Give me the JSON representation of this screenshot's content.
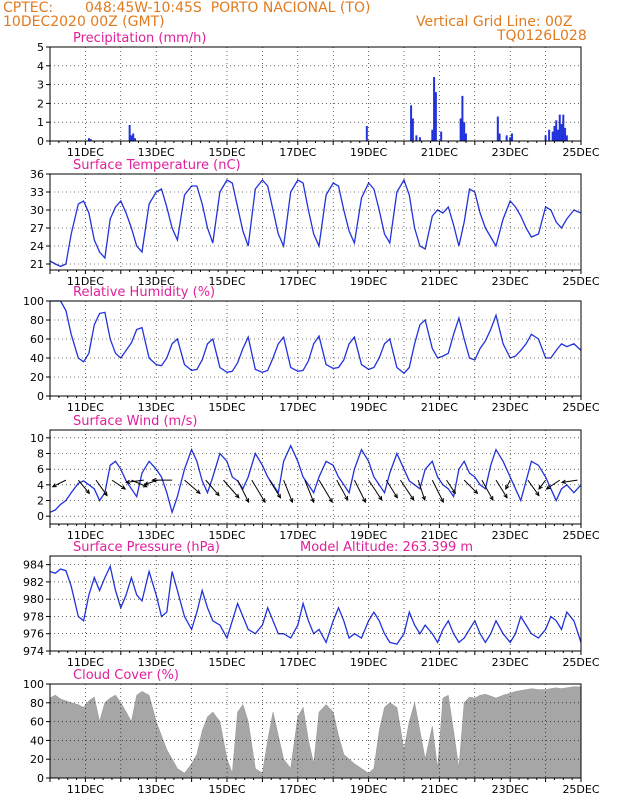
{
  "header": {
    "source": "CPTEC:",
    "location": "048:45W-10:45S  PORTO NACIONAL (TO)",
    "datetime": "10DEC2020 00Z (GMT)",
    "grid_note": "Vertical Grid Line: 00Z",
    "code": "TQ0126L028"
  },
  "colors": {
    "header": "#e07b20",
    "title": "#e0209a",
    "series": "#2233dd",
    "cloud": "#a6a6a6",
    "vector": "#000000"
  },
  "x_axis": {
    "start_day": 10,
    "end_day": 25,
    "tick_labels": [
      "11DEC",
      "13DEC",
      "15DEC",
      "17DEC",
      "19DEC",
      "21DEC",
      "23DEC",
      "25DEC"
    ]
  },
  "chart_data": [
    {
      "type": "bar",
      "title": "Precipitation (mm/h)",
      "ylim": [
        0,
        5
      ],
      "yticks": [
        0,
        1,
        2,
        3,
        4,
        5
      ],
      "grid": true,
      "x": [
        11.1,
        11.15,
        12.25,
        12.3,
        12.35,
        12.4,
        18.95,
        20.2,
        20.25,
        20.35,
        20.45,
        20.8,
        20.85,
        20.9,
        21.05,
        21.6,
        21.65,
        21.7,
        21.75,
        22.65,
        22.7,
        22.9,
        23.0,
        23.05,
        24.0,
        24.1,
        24.2,
        24.25,
        24.3,
        24.35,
        24.4,
        24.45,
        24.5,
        24.55,
        24.6
      ],
      "values": [
        0.15,
        0.1,
        0.85,
        0.3,
        0.4,
        0.15,
        0.8,
        1.9,
        1.2,
        0.3,
        0.2,
        0.6,
        3.4,
        2.6,
        0.5,
        1.2,
        2.4,
        1.0,
        0.4,
        1.3,
        0.4,
        0.3,
        0.2,
        0.4,
        0.3,
        0.6,
        0.5,
        0.8,
        1.1,
        0.6,
        1.4,
        0.9,
        1.4,
        0.7,
        0.3
      ]
    },
    {
      "type": "line",
      "title": "Surface Temperature (nC)",
      "ylim": [
        20,
        36
      ],
      "yticks": [
        21,
        24,
        27,
        30,
        33,
        36
      ],
      "grid": true,
      "x": [
        10.0,
        10.15,
        10.3,
        10.45,
        10.6,
        10.8,
        10.95,
        11.1,
        11.25,
        11.4,
        11.55,
        11.7,
        11.85,
        12.0,
        12.15,
        12.3,
        12.45,
        12.6,
        12.8,
        13.0,
        13.15,
        13.3,
        13.45,
        13.6,
        13.8,
        14.0,
        14.15,
        14.3,
        14.45,
        14.6,
        14.8,
        15.0,
        15.15,
        15.3,
        15.45,
        15.6,
        15.8,
        16.0,
        16.15,
        16.3,
        16.45,
        16.6,
        16.8,
        17.0,
        17.15,
        17.3,
        17.45,
        17.6,
        17.8,
        18.0,
        18.15,
        18.3,
        18.45,
        18.6,
        18.8,
        19.0,
        19.15,
        19.3,
        19.45,
        19.6,
        19.8,
        20.0,
        20.15,
        20.3,
        20.45,
        20.6,
        20.8,
        20.95,
        21.1,
        21.25,
        21.4,
        21.55,
        21.7,
        21.85,
        22.0,
        22.15,
        22.3,
        22.45,
        22.6,
        22.8,
        23.0,
        23.15,
        23.3,
        23.45,
        23.6,
        23.8,
        24.0,
        24.15,
        24.3,
        24.45,
        24.6,
        24.8,
        25.0
      ],
      "series": [
        {
          "values": [
            21.5,
            21.0,
            20.6,
            21.0,
            26.0,
            31.0,
            31.5,
            29.5,
            25.0,
            23.0,
            22.0,
            28.5,
            30.5,
            31.5,
            29.5,
            27.0,
            24.0,
            23.0,
            31.0,
            33.0,
            33.5,
            30.5,
            27.0,
            25.0,
            32.5,
            34.0,
            34.0,
            31.0,
            27.0,
            24.5,
            33.0,
            35.0,
            34.5,
            30.5,
            26.5,
            24.0,
            33.5,
            35.0,
            34.0,
            30.0,
            26.0,
            24.0,
            33.0,
            35.0,
            34.5,
            30.0,
            26.0,
            24.0,
            32.5,
            34.5,
            34.0,
            30.0,
            26.5,
            24.5,
            32.0,
            34.5,
            33.5,
            30.0,
            26.0,
            24.5,
            33.0,
            35.0,
            32.5,
            27.0,
            24.0,
            23.5,
            29.0,
            30.0,
            29.5,
            30.5,
            27.5,
            24.0,
            28.0,
            33.5,
            33.0,
            29.5,
            27.0,
            25.5,
            24.0,
            28.5,
            31.5,
            30.5,
            29.0,
            27.0,
            25.5,
            26.0,
            30.5,
            30.0,
            28.0,
            27.0,
            28.5,
            30.0,
            29.5
          ]
        }
      ]
    },
    {
      "type": "line",
      "title": "Relative Humidity (%)",
      "ylim": [
        0,
        100
      ],
      "yticks": [
        0,
        20,
        40,
        60,
        80,
        100
      ],
      "grid": true,
      "x": [
        10.0,
        10.15,
        10.3,
        10.45,
        10.6,
        10.8,
        10.95,
        11.1,
        11.25,
        11.4,
        11.55,
        11.7,
        11.85,
        12.0,
        12.15,
        12.3,
        12.45,
        12.6,
        12.8,
        13.0,
        13.15,
        13.3,
        13.45,
        13.6,
        13.8,
        14.0,
        14.15,
        14.3,
        14.45,
        14.6,
        14.8,
        15.0,
        15.15,
        15.3,
        15.45,
        15.6,
        15.8,
        16.0,
        16.15,
        16.3,
        16.45,
        16.6,
        16.8,
        17.0,
        17.15,
        17.3,
        17.45,
        17.6,
        17.8,
        18.0,
        18.15,
        18.3,
        18.45,
        18.6,
        18.8,
        19.0,
        19.15,
        19.3,
        19.45,
        19.6,
        19.8,
        20.0,
        20.15,
        20.3,
        20.45,
        20.6,
        20.8,
        20.95,
        21.1,
        21.25,
        21.4,
        21.55,
        21.7,
        21.85,
        22.0,
        22.15,
        22.3,
        22.45,
        22.6,
        22.8,
        23.0,
        23.15,
        23.3,
        23.45,
        23.6,
        23.8,
        24.0,
        24.15,
        24.3,
        24.45,
        24.6,
        24.8,
        25.0
      ],
      "series": [
        {
          "values": [
            100,
            100,
            100,
            90,
            65,
            40,
            36,
            45,
            75,
            87,
            88,
            60,
            45,
            40,
            48,
            56,
            70,
            72,
            40,
            33,
            32,
            40,
            55,
            60,
            33,
            27,
            28,
            38,
            55,
            60,
            30,
            25,
            26,
            35,
            50,
            62,
            28,
            25,
            27,
            40,
            55,
            62,
            30,
            26,
            27,
            37,
            55,
            63,
            33,
            29,
            30,
            38,
            55,
            62,
            33,
            28,
            30,
            40,
            55,
            60,
            30,
            24,
            30,
            55,
            75,
            80,
            50,
            40,
            42,
            45,
            65,
            82,
            60,
            40,
            38,
            50,
            58,
            70,
            85,
            55,
            40,
            42,
            48,
            55,
            65,
            60,
            40,
            40,
            48,
            55,
            52,
            55,
            48
          ]
        }
      ]
    },
    {
      "type": "line",
      "title": "Surface Wind (m/s)",
      "ylim": [
        -1,
        11
      ],
      "yticks": [
        0,
        2,
        4,
        6,
        8,
        10
      ],
      "grid": true,
      "x": [
        10.0,
        10.15,
        10.3,
        10.45,
        10.6,
        10.8,
        10.95,
        11.1,
        11.25,
        11.4,
        11.55,
        11.7,
        11.85,
        12.0,
        12.15,
        12.3,
        12.45,
        12.6,
        12.8,
        13.0,
        13.15,
        13.3,
        13.45,
        13.6,
        13.8,
        14.0,
        14.15,
        14.3,
        14.45,
        14.6,
        14.8,
        15.0,
        15.15,
        15.3,
        15.45,
        15.6,
        15.8,
        16.0,
        16.15,
        16.3,
        16.45,
        16.6,
        16.8,
        17.0,
        17.15,
        17.3,
        17.45,
        17.6,
        17.8,
        18.0,
        18.15,
        18.3,
        18.45,
        18.6,
        18.8,
        19.0,
        19.15,
        19.3,
        19.45,
        19.6,
        19.8,
        20.0,
        20.15,
        20.3,
        20.45,
        20.6,
        20.8,
        20.95,
        21.1,
        21.25,
        21.4,
        21.55,
        21.7,
        21.85,
        22.0,
        22.15,
        22.3,
        22.45,
        22.6,
        22.8,
        23.0,
        23.15,
        23.3,
        23.45,
        23.6,
        23.8,
        24.0,
        24.15,
        24.3,
        24.45,
        24.6,
        24.8,
        25.0
      ],
      "series": [
        {
          "values": [
            0.5,
            0.8,
            1.5,
            2.0,
            3.0,
            4.2,
            4.5,
            4.0,
            3.5,
            2.0,
            3.0,
            6.5,
            7.0,
            6.0,
            4.5,
            3.5,
            2.5,
            5.5,
            7.0,
            6.0,
            5.0,
            3.0,
            0.5,
            2.5,
            6.0,
            8.5,
            7.0,
            4.5,
            3.0,
            5.0,
            8.0,
            7.0,
            5.0,
            4.5,
            3.5,
            5.0,
            8.0,
            6.5,
            5.0,
            4.0,
            3.0,
            7.0,
            9.0,
            7.0,
            5.0,
            4.0,
            3.0,
            5.0,
            7.0,
            6.5,
            5.0,
            4.0,
            3.0,
            6.0,
            8.5,
            7.0,
            5.0,
            4.0,
            3.0,
            5.5,
            8.0,
            6.0,
            4.5,
            4.0,
            3.5,
            6.0,
            7.0,
            5.0,
            4.0,
            3.5,
            2.5,
            6.0,
            7.0,
            5.5,
            5.0,
            4.0,
            3.5,
            6.5,
            8.5,
            7.0,
            5.0,
            3.5,
            2.0,
            4.5,
            7.0,
            6.5,
            5.0,
            3.5,
            2.0,
            3.5,
            4.0,
            3.0,
            4.0
          ]
        }
      ],
      "vectors": {
        "x": [
          10.45,
          10.8,
          11.3,
          11.75,
          12.3,
          12.65,
          13.05,
          13.45,
          13.8,
          14.4,
          14.9,
          15.3,
          15.7,
          16.2,
          16.6,
          17.2,
          17.6,
          18.1,
          18.6,
          19.0,
          19.5,
          19.9,
          20.4,
          20.8,
          21.2,
          21.7,
          22.2,
          22.6,
          23.0,
          23.5,
          24.0,
          24.4,
          24.9
        ],
        "u": [
          -0.6,
          0.5,
          0.5,
          0.6,
          0.7,
          -0.8,
          -0.6,
          -0.9,
          0.7,
          0.6,
          0.7,
          0.5,
          0.6,
          0.5,
          0.4,
          0.4,
          0.6,
          0.5,
          0.5,
          0.6,
          0.5,
          0.6,
          0.3,
          0.5,
          0.4,
          0.6,
          0.5,
          0.5,
          -0.2,
          0.5,
          -0.3,
          -0.6,
          -0.7
        ],
        "v": [
          0.3,
          0.6,
          0.7,
          0.4,
          0.3,
          0.1,
          0.2,
          0.0,
          0.6,
          0.7,
          0.8,
          1.0,
          1.0,
          0.8,
          1.0,
          1.0,
          1.0,
          0.9,
          1.0,
          0.9,
          0.8,
          0.9,
          0.9,
          1.0,
          0.6,
          0.6,
          0.9,
          0.8,
          0.4,
          0.7,
          0.4,
          0.4,
          0.1
        ]
      }
    },
    {
      "type": "line",
      "title": "Surface Pressure (hPa)",
      "annotation": "Model Altitude: 263.399 m",
      "ylim": [
        974,
        985
      ],
      "yticks": [
        974,
        976,
        978,
        980,
        982,
        984
      ],
      "grid": true,
      "x": [
        10.0,
        10.15,
        10.3,
        10.45,
        10.6,
        10.8,
        10.95,
        11.1,
        11.25,
        11.4,
        11.55,
        11.7,
        11.85,
        12.0,
        12.15,
        12.3,
        12.45,
        12.6,
        12.8,
        13.0,
        13.15,
        13.3,
        13.45,
        13.6,
        13.8,
        14.0,
        14.15,
        14.3,
        14.45,
        14.6,
        14.8,
        15.0,
        15.15,
        15.3,
        15.45,
        15.6,
        15.8,
        16.0,
        16.15,
        16.3,
        16.45,
        16.6,
        16.8,
        17.0,
        17.15,
        17.3,
        17.45,
        17.6,
        17.8,
        18.0,
        18.15,
        18.3,
        18.45,
        18.6,
        18.8,
        19.0,
        19.15,
        19.3,
        19.45,
        19.6,
        19.8,
        20.0,
        20.15,
        20.3,
        20.45,
        20.6,
        20.8,
        20.95,
        21.1,
        21.25,
        21.4,
        21.55,
        21.7,
        21.85,
        22.0,
        22.15,
        22.3,
        22.45,
        22.6,
        22.8,
        23.0,
        23.15,
        23.3,
        23.45,
        23.6,
        23.8,
        24.0,
        24.15,
        24.3,
        24.45,
        24.6,
        24.8,
        25.0
      ],
      "series": [
        {
          "values": [
            983.2,
            983.0,
            983.5,
            983.3,
            981.5,
            978.0,
            977.5,
            980.5,
            982.5,
            981.0,
            982.5,
            983.8,
            981.0,
            979.0,
            980.5,
            982.5,
            980.5,
            979.8,
            983.2,
            980.5,
            978.0,
            978.5,
            983.2,
            981.0,
            978.0,
            976.5,
            978.5,
            981.0,
            979.0,
            977.5,
            977.0,
            975.5,
            977.5,
            979.5,
            978.0,
            976.5,
            976.0,
            977.0,
            979.0,
            977.5,
            976.0,
            976.0,
            975.5,
            977.0,
            979.5,
            977.5,
            976.0,
            976.5,
            975.0,
            977.5,
            979.0,
            977.5,
            975.5,
            976.0,
            975.5,
            977.5,
            978.5,
            977.5,
            976.0,
            975.0,
            974.8,
            976.0,
            978.5,
            977.0,
            976.0,
            977.0,
            976.0,
            975.0,
            976.5,
            977.5,
            976.0,
            975.0,
            975.5,
            976.5,
            977.5,
            976.0,
            975.0,
            976.0,
            977.5,
            976.0,
            975.0,
            976.0,
            978.0,
            977.0,
            976.0,
            975.5,
            976.5,
            978.0,
            977.5,
            976.5,
            978.5,
            977.5,
            975.0
          ]
        }
      ]
    },
    {
      "type": "area",
      "title": "Cloud Cover (%)",
      "ylim": [
        0,
        100
      ],
      "yticks": [
        0,
        20,
        40,
        60,
        80,
        100
      ],
      "grid": true,
      "x": [
        10.0,
        10.15,
        10.3,
        10.45,
        10.6,
        10.8,
        10.95,
        11.1,
        11.25,
        11.4,
        11.55,
        11.7,
        11.85,
        12.0,
        12.15,
        12.3,
        12.45,
        12.6,
        12.8,
        13.0,
        13.15,
        13.3,
        13.45,
        13.6,
        13.8,
        14.0,
        14.15,
        14.3,
        14.45,
        14.6,
        14.8,
        15.0,
        15.15,
        15.3,
        15.45,
        15.6,
        15.8,
        16.0,
        16.15,
        16.3,
        16.45,
        16.6,
        16.8,
        17.0,
        17.15,
        17.3,
        17.45,
        17.6,
        17.8,
        18.0,
        18.15,
        18.3,
        18.45,
        18.6,
        18.8,
        19.0,
        19.15,
        19.3,
        19.45,
        19.6,
        19.8,
        20.0,
        20.15,
        20.3,
        20.45,
        20.6,
        20.8,
        20.95,
        21.1,
        21.25,
        21.4,
        21.55,
        21.7,
        21.85,
        22.0,
        22.15,
        22.3,
        22.45,
        22.6,
        22.8,
        23.0,
        23.15,
        23.3,
        23.45,
        23.6,
        23.8,
        24.0,
        24.15,
        24.3,
        24.45,
        24.6,
        24.8,
        25.0
      ],
      "series": [
        {
          "values": [
            85,
            88,
            84,
            82,
            80,
            78,
            75,
            82,
            86,
            60,
            80,
            85,
            88,
            80,
            70,
            60,
            88,
            92,
            88,
            60,
            45,
            30,
            20,
            10,
            5,
            15,
            25,
            50,
            65,
            70,
            60,
            20,
            5,
            70,
            78,
            60,
            10,
            5,
            40,
            70,
            45,
            20,
            10,
            65,
            75,
            40,
            15,
            70,
            78,
            70,
            45,
            25,
            20,
            15,
            10,
            5,
            10,
            50,
            75,
            80,
            75,
            30,
            60,
            80,
            50,
            20,
            55,
            10,
            85,
            88,
            50,
            10,
            80,
            86,
            85,
            88,
            89,
            87,
            85,
            88,
            90,
            92,
            93,
            94,
            95,
            94,
            94,
            95,
            96,
            95,
            96,
            97,
            97
          ]
        }
      ]
    }
  ]
}
